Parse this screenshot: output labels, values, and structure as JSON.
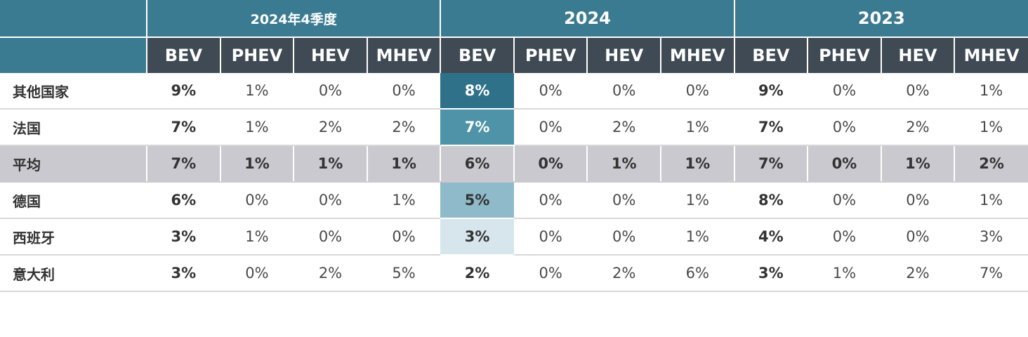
{
  "chart_data": {
    "type": "table",
    "groups": [
      {
        "label": "2024年4季度",
        "columns": [
          "BEV",
          "PHEV",
          "HEV",
          "MHEV"
        ]
      },
      {
        "label": "2024",
        "columns": [
          "BEV",
          "PHEV",
          "HEV",
          "MHEV"
        ]
      },
      {
        "label": "2023",
        "columns": [
          "BEV",
          "PHEV",
          "HEV",
          "MHEV"
        ]
      }
    ],
    "rows": [
      {
        "label": "其他国家",
        "values": [
          "9%",
          "1%",
          "0%",
          "0%",
          "8%",
          "0%",
          "0%",
          "0%",
          "9%",
          "0%",
          "0%",
          "1%"
        ]
      },
      {
        "label": "法国",
        "values": [
          "7%",
          "1%",
          "2%",
          "2%",
          "7%",
          "0%",
          "2%",
          "1%",
          "7%",
          "0%",
          "2%",
          "1%"
        ]
      },
      {
        "label": "平均",
        "values": [
          "7%",
          "1%",
          "1%",
          "1%",
          "6%",
          "0%",
          "1%",
          "1%",
          "7%",
          "0%",
          "1%",
          "2%"
        ]
      },
      {
        "label": "德国",
        "values": [
          "6%",
          "0%",
          "0%",
          "1%",
          "5%",
          "0%",
          "0%",
          "1%",
          "8%",
          "0%",
          "0%",
          "1%"
        ]
      },
      {
        "label": "西班牙",
        "values": [
          "3%",
          "1%",
          "0%",
          "0%",
          "3%",
          "0%",
          "0%",
          "1%",
          "4%",
          "0%",
          "0%",
          "3%"
        ]
      },
      {
        "label": "意大利",
        "values": [
          "3%",
          "0%",
          "2%",
          "5%",
          "2%",
          "0%",
          "2%",
          "6%",
          "3%",
          "1%",
          "2%",
          "7%"
        ]
      }
    ],
    "highlight_colors": {
      "8%": "#2f7189",
      "7%": "#4e93a8",
      "5%": "#8fbac9",
      "3%": "#d6e6ec"
    }
  }
}
